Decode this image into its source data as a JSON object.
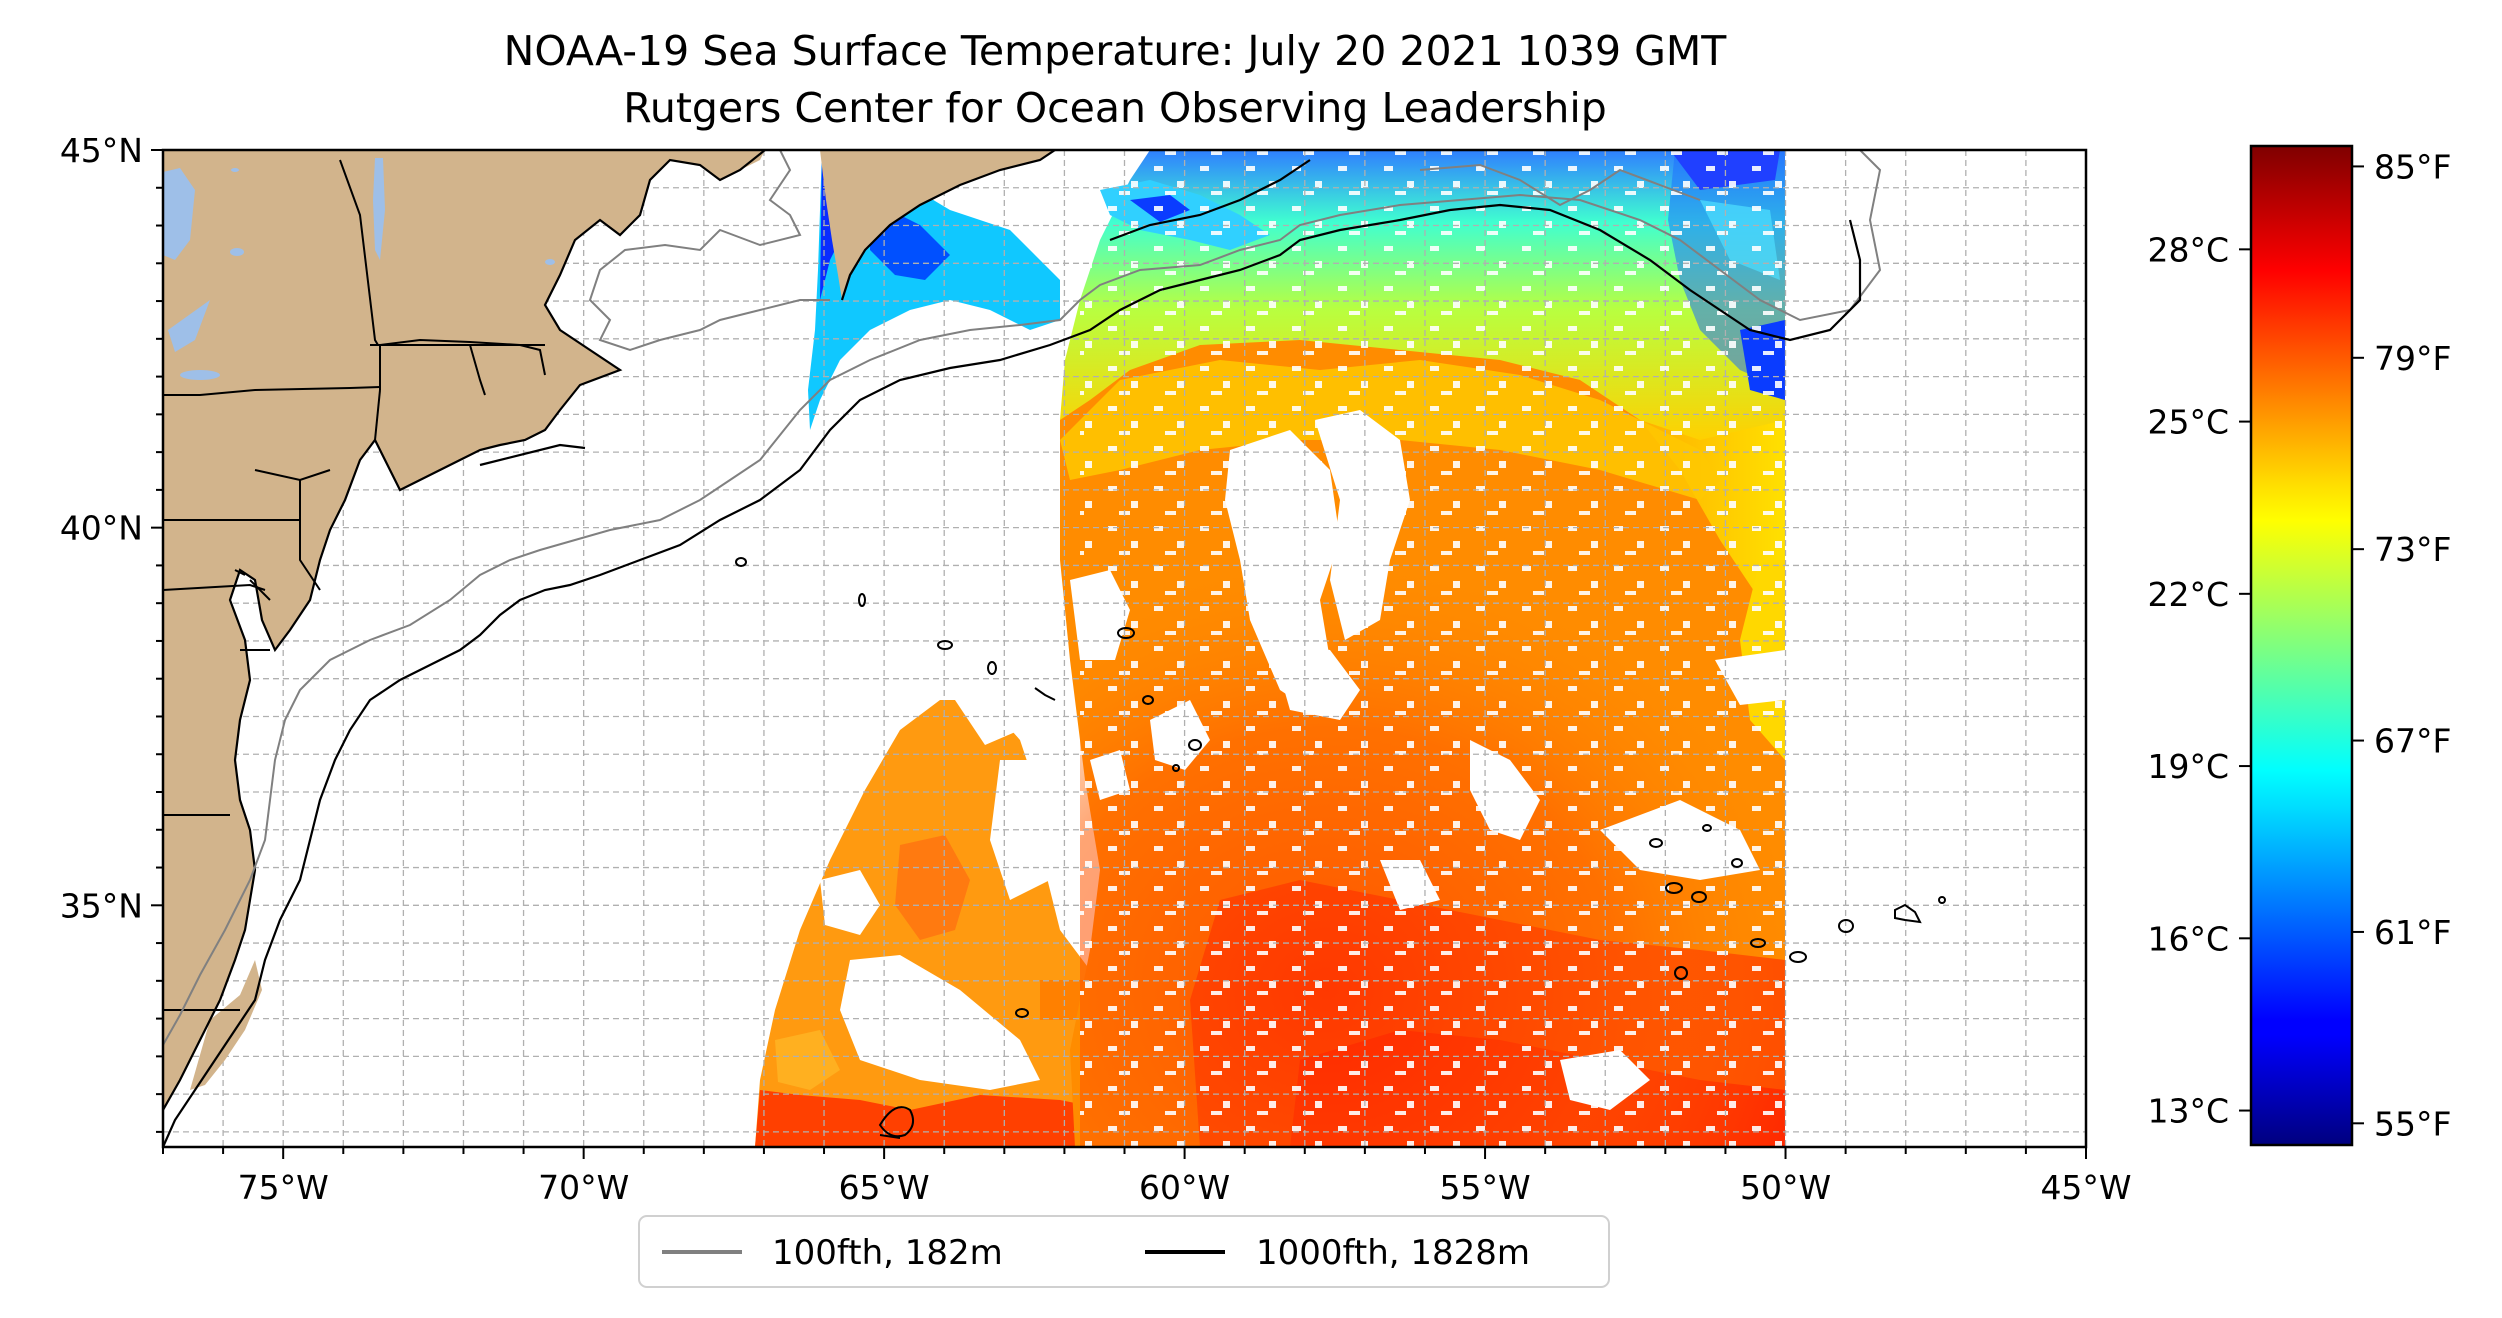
{
  "figure": {
    "title_line1": "NOAA-19 Sea Surface Temperature: July 20 2021 1039 GMT",
    "title_line2": "Rutgers Center for Ocean Observing Leadership"
  },
  "map": {
    "lon_range": [
      -77,
      -45
    ],
    "lat_range": [
      31.8,
      45
    ],
    "lon_ticks": [
      {
        "value": -75,
        "label": "75°W"
      },
      {
        "value": -70,
        "label": "70°W"
      },
      {
        "value": -65,
        "label": "65°W"
      },
      {
        "value": -60,
        "label": "60°W"
      },
      {
        "value": -55,
        "label": "55°W"
      },
      {
        "value": -50,
        "label": "50°W"
      },
      {
        "value": -45,
        "label": "45°W"
      }
    ],
    "lat_ticks": [
      {
        "value": 45,
        "label": "45°N"
      },
      {
        "value": 40,
        "label": "40°N"
      },
      {
        "value": 35,
        "label": "35°N"
      }
    ],
    "gridlines": true,
    "land_color": "#d2b48c",
    "lake_color": "#9ebfe8",
    "isobath_100_color": "#808080",
    "isobath_1000_color": "#000000"
  },
  "legend": {
    "position": "bottom-center",
    "entries": [
      {
        "label": "100fth, 182m",
        "color": "#808080"
      },
      {
        "label": "1000fth, 1828m",
        "color": "#000000"
      }
    ]
  },
  "colorbar": {
    "colormap": "jet",
    "celsius_range": [
      12.4,
      29.8
    ],
    "celsius_ticks": [
      {
        "value": 13,
        "label": "13°C"
      },
      {
        "value": 16,
        "label": "16°C"
      },
      {
        "value": 19,
        "label": "19°C"
      },
      {
        "value": 22,
        "label": "22°C"
      },
      {
        "value": 25,
        "label": "25°C"
      },
      {
        "value": 28,
        "label": "28°C"
      }
    ],
    "fahrenheit_ticks": [
      {
        "value": 55,
        "label": "55°F"
      },
      {
        "value": 61,
        "label": "61°F"
      },
      {
        "value": 67,
        "label": "67°F"
      },
      {
        "value": 73,
        "label": "73°F"
      },
      {
        "value": 79,
        "label": "79°F"
      },
      {
        "value": 85,
        "label": "85°F"
      }
    ]
  }
}
